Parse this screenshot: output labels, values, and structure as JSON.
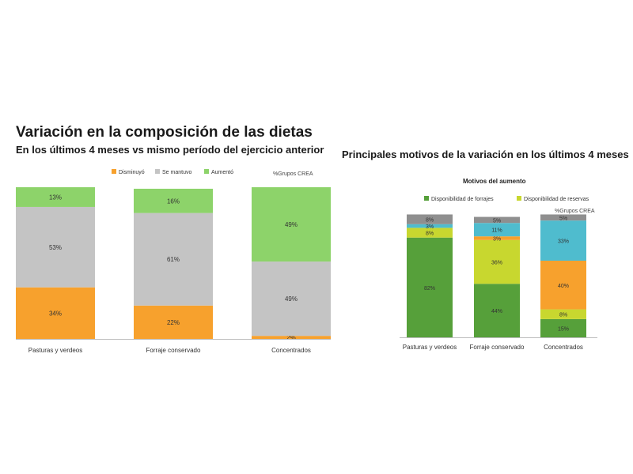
{
  "headings": {
    "left_title": "Variación en la composición de las dietas",
    "left_subtitle": "En los últimos 4 meses vs mismo período del ejercicio anterior",
    "right_title": "Principales motivos de la variación en los últimos 4 meses"
  },
  "chart_data": [
    {
      "type": "bar",
      "stacked": true,
      "title": "",
      "unit_label": "%Grupos CREA",
      "categories": [
        "Pasturas y verdeos",
        "Forraje conservado",
        "Concentrados"
      ],
      "series": [
        {
          "name": "Disminuyó",
          "color": "#f7a12d",
          "values": [
            34,
            22,
            2
          ]
        },
        {
          "name": "Se mantuvo",
          "color": "#c4c4c4",
          "values": [
            53,
            61,
            49
          ]
        },
        {
          "name": "Aumentó",
          "color": "#8dd36a",
          "values": [
            13,
            16,
            49
          ]
        }
      ],
      "data_labels": [
        [
          "34%",
          "22%",
          "2%"
        ],
        [
          "53%",
          "61%",
          "49%"
        ],
        [
          "13%",
          "16%",
          "49%"
        ]
      ],
      "ylim": [
        0,
        100
      ],
      "grid": false,
      "legend_placement": "top"
    },
    {
      "type": "bar",
      "stacked": true,
      "title": "Motivos del aumento",
      "unit_label": "%Grupos CREA",
      "categories": [
        "Pasturas y verdeos",
        "Forraje conservado",
        "Concentrados"
      ],
      "series": [
        {
          "name": "Disponibilidad de forrajes",
          "color": "#56a03a",
          "values": [
            82,
            44,
            15
          ]
        },
        {
          "name": "Disponibilidad de reservas",
          "color": "#c8d72f",
          "values": [
            8,
            36,
            8
          ]
        },
        {
          "name": "",
          "color": "#f7a12d",
          "values": [
            0,
            3,
            40
          ]
        },
        {
          "name": "",
          "color": "#4fbcce",
          "values": [
            3,
            11,
            33
          ]
        },
        {
          "name": "",
          "color": "#8f8f8f",
          "values": [
            8,
            5,
            5
          ]
        }
      ],
      "data_labels": [
        [
          "82%",
          "44%",
          "15%"
        ],
        [
          "8%",
          "36%",
          "8%"
        ],
        [
          "",
          "3%",
          "40%"
        ],
        [
          "3%",
          "11%",
          "33%"
        ],
        [
          "8%",
          "5%",
          "5%"
        ]
      ],
      "ylim": [
        0,
        100
      ],
      "grid": false,
      "legend_placement": "top"
    }
  ]
}
